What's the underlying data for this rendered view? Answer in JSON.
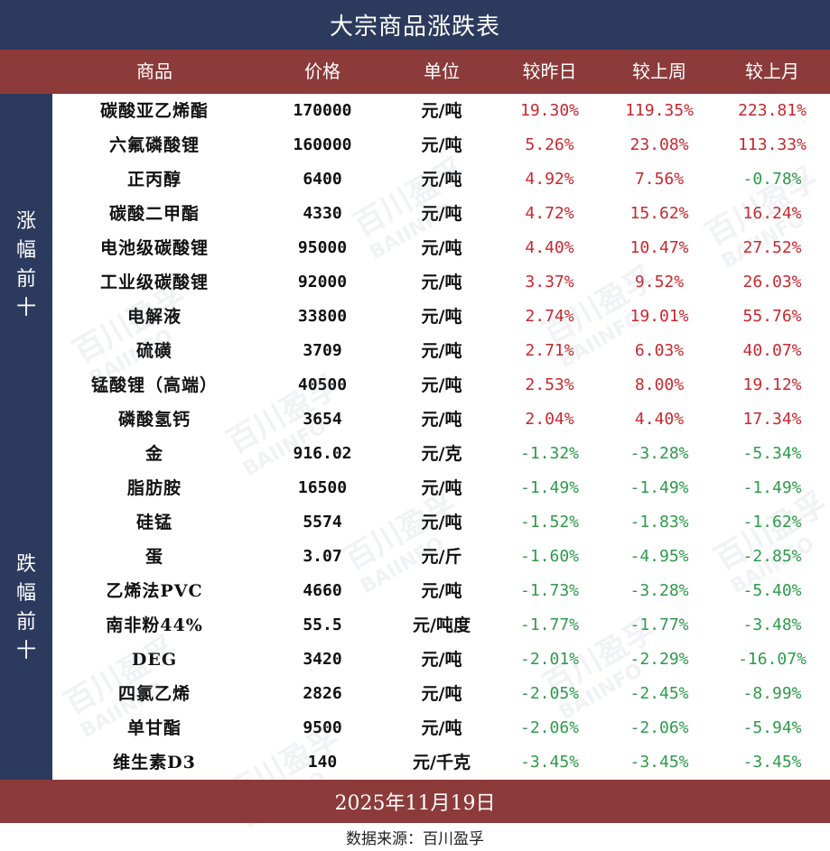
{
  "title": "大宗商品涨跌表",
  "headers": [
    "商品",
    "价格",
    "单位",
    "较昨日",
    "较上周",
    "较上月"
  ],
  "side_labels": {
    "top": "涨幅前十",
    "bottom": "跌幅前十"
  },
  "watermark": {
    "cn": "百川盈孚",
    "en": "BAIINFO"
  },
  "colors": {
    "header_bg": "#8d3a3a",
    "title_bg": "#2c3a5e",
    "up": "#c8282e",
    "down": "#2e9b4a"
  },
  "top_rows": [
    {
      "name": "碳酸亚乙烯酯",
      "price": "170000",
      "unit": "元/吨",
      "d": "19.30%",
      "w": "119.35%",
      "m": "223.81%",
      "dc": "up",
      "wc": "up",
      "mc": "up"
    },
    {
      "name": "六氟磷酸锂",
      "price": "160000",
      "unit": "元/吨",
      "d": "5.26%",
      "w": "23.08%",
      "m": "113.33%",
      "dc": "up",
      "wc": "up",
      "mc": "up"
    },
    {
      "name": "正丙醇",
      "price": "6400",
      "unit": "元/吨",
      "d": "4.92%",
      "w": "7.56%",
      "m": "-0.78%",
      "dc": "up",
      "wc": "up",
      "mc": "down"
    },
    {
      "name": "碳酸二甲酯",
      "price": "4330",
      "unit": "元/吨",
      "d": "4.72%",
      "w": "15.62%",
      "m": "16.24%",
      "dc": "up",
      "wc": "up",
      "mc": "up"
    },
    {
      "name": "电池级碳酸锂",
      "price": "95000",
      "unit": "元/吨",
      "d": "4.40%",
      "w": "10.47%",
      "m": "27.52%",
      "dc": "up",
      "wc": "up",
      "mc": "up"
    },
    {
      "name": "工业级碳酸锂",
      "price": "92000",
      "unit": "元/吨",
      "d": "3.37%",
      "w": "9.52%",
      "m": "26.03%",
      "dc": "up",
      "wc": "up",
      "mc": "up"
    },
    {
      "name": "电解液",
      "price": "33800",
      "unit": "元/吨",
      "d": "2.74%",
      "w": "19.01%",
      "m": "55.76%",
      "dc": "up",
      "wc": "up",
      "mc": "up"
    },
    {
      "name": "硫磺",
      "price": "3709",
      "unit": "元/吨",
      "d": "2.71%",
      "w": "6.03%",
      "m": "40.07%",
      "dc": "up",
      "wc": "up",
      "mc": "up"
    },
    {
      "name": "锰酸锂（高端）",
      "price": "40500",
      "unit": "元/吨",
      "d": "2.53%",
      "w": "8.00%",
      "m": "19.12%",
      "dc": "up",
      "wc": "up",
      "mc": "up"
    },
    {
      "name": "磷酸氢钙",
      "price": "3654",
      "unit": "元/吨",
      "d": "2.04%",
      "w": "4.40%",
      "m": "17.34%",
      "dc": "up",
      "wc": "up",
      "mc": "up"
    }
  ],
  "bottom_rows": [
    {
      "name": "金",
      "price": "916.02",
      "unit": "元/克",
      "d": "-1.32%",
      "w": "-3.28%",
      "m": "-5.34%",
      "dc": "down",
      "wc": "down",
      "mc": "down"
    },
    {
      "name": "脂肪胺",
      "price": "16500",
      "unit": "元/吨",
      "d": "-1.49%",
      "w": "-1.49%",
      "m": "-1.49%",
      "dc": "down",
      "wc": "down",
      "mc": "down"
    },
    {
      "name": "硅锰",
      "price": "5574",
      "unit": "元/吨",
      "d": "-1.52%",
      "w": "-1.83%",
      "m": "-1.62%",
      "dc": "down",
      "wc": "down",
      "mc": "down"
    },
    {
      "name": "蛋",
      "price": "3.07",
      "unit": "元/斤",
      "d": "-1.60%",
      "w": "-4.95%",
      "m": "-2.85%",
      "dc": "down",
      "wc": "down",
      "mc": "down"
    },
    {
      "name": "乙烯法PVC",
      "price": "4660",
      "unit": "元/吨",
      "d": "-1.73%",
      "w": "-3.28%",
      "m": "-5.40%",
      "dc": "down",
      "wc": "down",
      "mc": "down"
    },
    {
      "name": "南非粉44%",
      "price": "55.5",
      "unit": "元/吨度",
      "d": "-1.77%",
      "w": "-1.77%",
      "m": "-3.48%",
      "dc": "down",
      "wc": "down",
      "mc": "down"
    },
    {
      "name": "DEG",
      "price": "3420",
      "unit": "元/吨",
      "d": "-2.01%",
      "w": "-2.29%",
      "m": "-16.07%",
      "dc": "down",
      "wc": "down",
      "mc": "down"
    },
    {
      "name": "四氯乙烯",
      "price": "2826",
      "unit": "元/吨",
      "d": "-2.05%",
      "w": "-2.45%",
      "m": "-8.99%",
      "dc": "down",
      "wc": "down",
      "mc": "down"
    },
    {
      "name": "单甘酯",
      "price": "9500",
      "unit": "元/吨",
      "d": "-2.06%",
      "w": "-2.06%",
      "m": "-5.94%",
      "dc": "down",
      "wc": "down",
      "mc": "down"
    },
    {
      "name": "维生素D3",
      "price": "140",
      "unit": "元/千克",
      "d": "-3.45%",
      "w": "-3.45%",
      "m": "-3.45%",
      "dc": "down",
      "wc": "down",
      "mc": "down"
    }
  ],
  "date": "2025年11月19日",
  "source": "数据来源：百川盈孚"
}
